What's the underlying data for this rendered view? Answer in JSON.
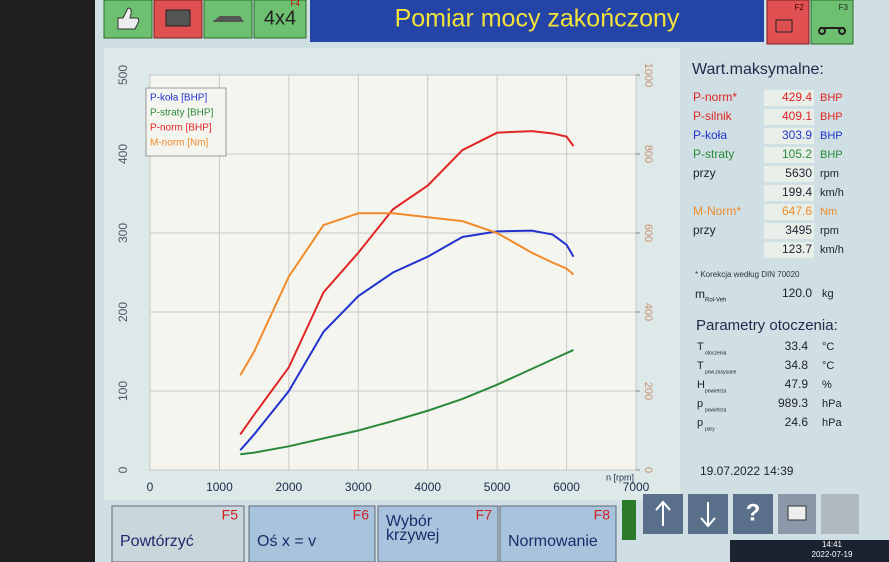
{
  "toolbar": {
    "button_4x4": "4x4",
    "title": "Pomiar mocy zakończony",
    "key_4x4": "F4",
    "key_left": "F2",
    "key_right": "F3",
    "help": "?"
  },
  "chart_data": {
    "type": "line",
    "x_label": "n [rpm]",
    "x": [
      1300,
      1500,
      2000,
      2500,
      3000,
      3500,
      4000,
      4500,
      5000,
      5500,
      5800,
      6000,
      6100
    ],
    "series": [
      {
        "name": "P-koła [BHP]",
        "color": "#2233d0",
        "values": [
          25,
          45,
          100,
          175,
          220,
          250,
          270,
          295,
          302,
          303,
          298,
          285,
          270
        ]
      },
      {
        "name": "P-straty [BHP]",
        "color": "#2a8a3a",
        "values": [
          20,
          22,
          30,
          40,
          50,
          62,
          75,
          90,
          108,
          128,
          140,
          148,
          152
        ]
      },
      {
        "name": "P-norm [BHP]",
        "color": "#e02424",
        "values": [
          45,
          70,
          130,
          225,
          275,
          330,
          360,
          405,
          427,
          429,
          426,
          422,
          410
        ]
      },
      {
        "name": "M-norm [Nm]",
        "color": "#f08a2a",
        "axis": "y2",
        "values": [
          240,
          300,
          490,
          620,
          650,
          650,
          640,
          630,
          600,
          550,
          525,
          510,
          495
        ]
      }
    ],
    "xlim": [
      0,
      7000
    ],
    "xticks": [
      0,
      1000,
      2000,
      3000,
      4000,
      5000,
      6000,
      7000
    ],
    "ylim": [
      0,
      500
    ],
    "yticks": [
      0,
      100,
      200,
      300,
      400,
      500
    ],
    "y2lim": [
      0,
      1000
    ],
    "y2ticks": [
      0,
      200,
      400,
      600,
      800,
      1000
    ],
    "grid": true,
    "legend": "upper left"
  },
  "panel": {
    "title": "Wart.maksymalne:",
    "rows": [
      {
        "label": "P-norm*",
        "value": "429.4",
        "unit": "BHP",
        "color": "#e02424"
      },
      {
        "label": "P-silnik",
        "value": "409.1",
        "unit": "BHP",
        "color": "#e02424"
      },
      {
        "label": "P-koła",
        "value": "303.9",
        "unit": "BHP",
        "color": "#2233d0"
      },
      {
        "label": "P-straty",
        "value": "105.2",
        "unit": "BHP",
        "color": "#2a8a3a"
      },
      {
        "label": "przy",
        "value": "5630",
        "unit": "rpm",
        "color": "#223"
      },
      {
        "value": "199.4",
        "unit": "km/h",
        "color": "#223"
      },
      {
        "label": "M-Norm*",
        "value": "647.6",
        "unit": "Nm",
        "color": "#f08a2a"
      },
      {
        "label": "przy",
        "value": "3495",
        "unit": "rpm",
        "color": "#223"
      },
      {
        "value": "123.7",
        "unit": "km/h",
        "color": "#223"
      }
    ],
    "note": "* Korekcja według DIN 70020",
    "mass": {
      "label": "m",
      "sub": "Rol-Veh",
      "value": "120.0",
      "unit": "kg"
    },
    "env_title": "Parametry otoczenia:",
    "env": [
      {
        "label": "T",
        "sub": "otoczenia",
        "value": "33.4",
        "unit": "°C"
      },
      {
        "label": "T",
        "sub": "pow.zasysane",
        "value": "34.8",
        "unit": "°C"
      },
      {
        "label": "H",
        "sub": "powietrza",
        "value": "47.9",
        "unit": "%"
      },
      {
        "label": "p",
        "sub": "powietrza",
        "value": "989.3",
        "unit": "hPa"
      },
      {
        "label": "p",
        "sub": "pary",
        "value": "24.6",
        "unit": "hPa"
      }
    ]
  },
  "buttons": [
    {
      "label": [
        "Powtórzyć"
      ],
      "key": "F5"
    },
    {
      "label": [
        "Oś x = v"
      ],
      "key": "F6"
    },
    {
      "label": [
        "Wybór",
        "krzywej"
      ],
      "key": "F7"
    },
    {
      "label": [
        "Normowanie"
      ],
      "key": "F8"
    }
  ],
  "status": {
    "datetime": "19.07.2022  14:39",
    "clock_time": "14:41",
    "clock_date": "2022-07-19"
  }
}
